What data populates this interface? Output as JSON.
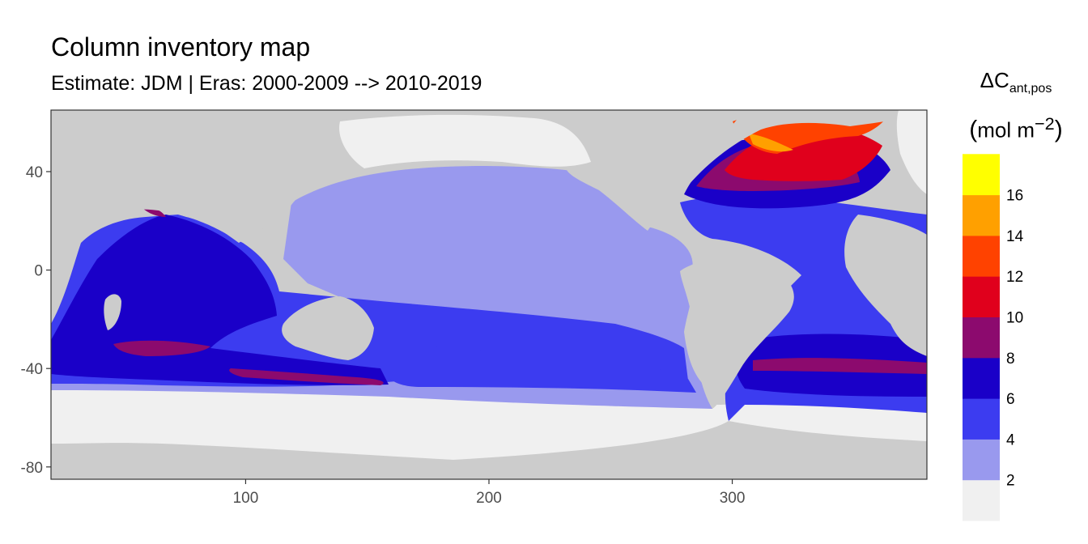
{
  "title": "Column inventory map",
  "subtitle": "Estimate: JDM  | Eras: 2000-2009 --> 2010-2019",
  "legend": {
    "symbol": "ΔC",
    "subscript": "ant,pos",
    "unit_open": "(",
    "unit_base": "mol m",
    "unit_exp": "−2",
    "unit_close": ")",
    "bins": [
      {
        "label": "",
        "color": "#f0f0f0"
      },
      {
        "label": "2",
        "color": "#9999ee"
      },
      {
        "label": "4",
        "color": "#3c3cf0"
      },
      {
        "label": "6",
        "color": "#1a00c8"
      },
      {
        "label": "8",
        "color": "#8c0a6e"
      },
      {
        "label": "10",
        "color": "#e0001c"
      },
      {
        "label": "12",
        "color": "#ff4200"
      },
      {
        "label": "14",
        "color": "#ffa000"
      },
      {
        "label": "16",
        "color": "#ffff00"
      }
    ]
  },
  "chart_data": {
    "type": "heatmap",
    "x_ticks": [
      100,
      200,
      300
    ],
    "y_ticks": [
      40,
      0,
      -40,
      -80
    ],
    "xlim": [
      20,
      380
    ],
    "ylim": [
      -85,
      65
    ],
    "land_color": "#cccccc",
    "colors": {
      "land": "#cccccc",
      "ice": "#f0f0f0",
      "bin_0_2": "#f0f0f0",
      "bin_2_4": "#9999ee",
      "bin_4_6": "#3c3cf0",
      "bin_6_8": "#1a00c8",
      "bin_8_10": "#8c0a6e",
      "bin_10_12": "#e0001c",
      "bin_12_14": "#ff4200",
      "bin_14_16": "#ffa000",
      "bin_16_18": "#ffff00"
    }
  }
}
